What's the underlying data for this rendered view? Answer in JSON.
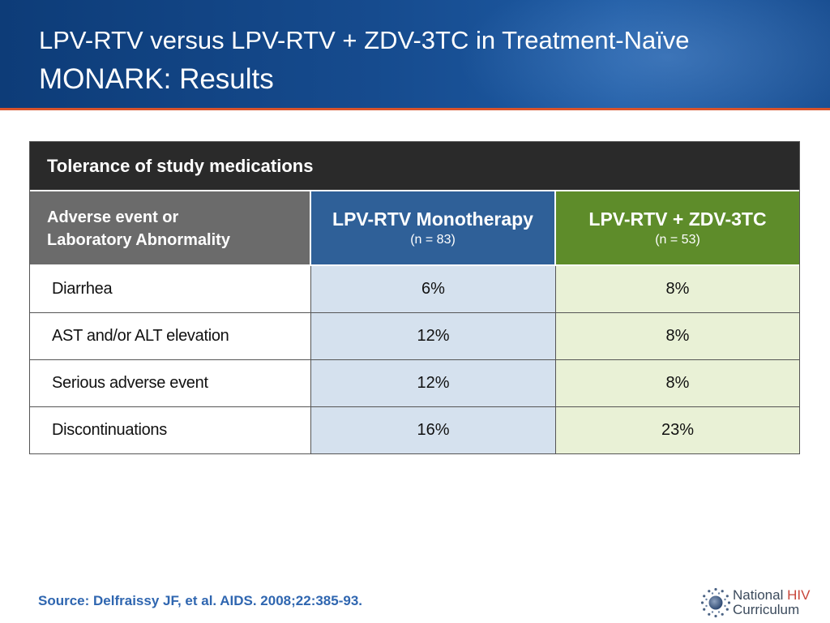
{
  "header": {
    "title_line1": "LPV-RTV versus LPV-RTV + ZDV-3TC in Treatment-Naïve",
    "title_line2": "MONARK: Results"
  },
  "table": {
    "title": "Tolerance of study medications",
    "col1_header_line1": "Adverse event or",
    "col1_header_line2": "Laboratory Abnormality",
    "col2_header": "LPV-RTV Monotherapy",
    "col2_sub": "(n = 83)",
    "col3_header": "LPV-RTV + ZDV-3TC",
    "col3_sub": "(n = 53)",
    "rows": [
      {
        "label": "Diarrhea",
        "mono": "6%",
        "combo": "8%"
      },
      {
        "label": "AST and/or ALT elevation",
        "mono": "12%",
        "combo": "8%"
      },
      {
        "label": "Serious adverse event",
        "mono": "12%",
        "combo": "8%"
      },
      {
        "label": "Discontinuations",
        "mono": "16%",
        "combo": "23%"
      }
    ]
  },
  "footer": {
    "source": "Source: Delfraissy JF, et al. AIDS. 2008;22:385-93.",
    "logo_word1": "National",
    "logo_word2": "HIV",
    "logo_word3": "Curriculum"
  },
  "colors": {
    "header_blue": "#164b8e",
    "accent_line": "#d9542c",
    "mono_header": "#2f6098",
    "combo_header": "#5e8c2a",
    "mono_cell": "#d5e1ee",
    "combo_cell": "#e9f1d6",
    "source_text": "#2f66b0"
  }
}
